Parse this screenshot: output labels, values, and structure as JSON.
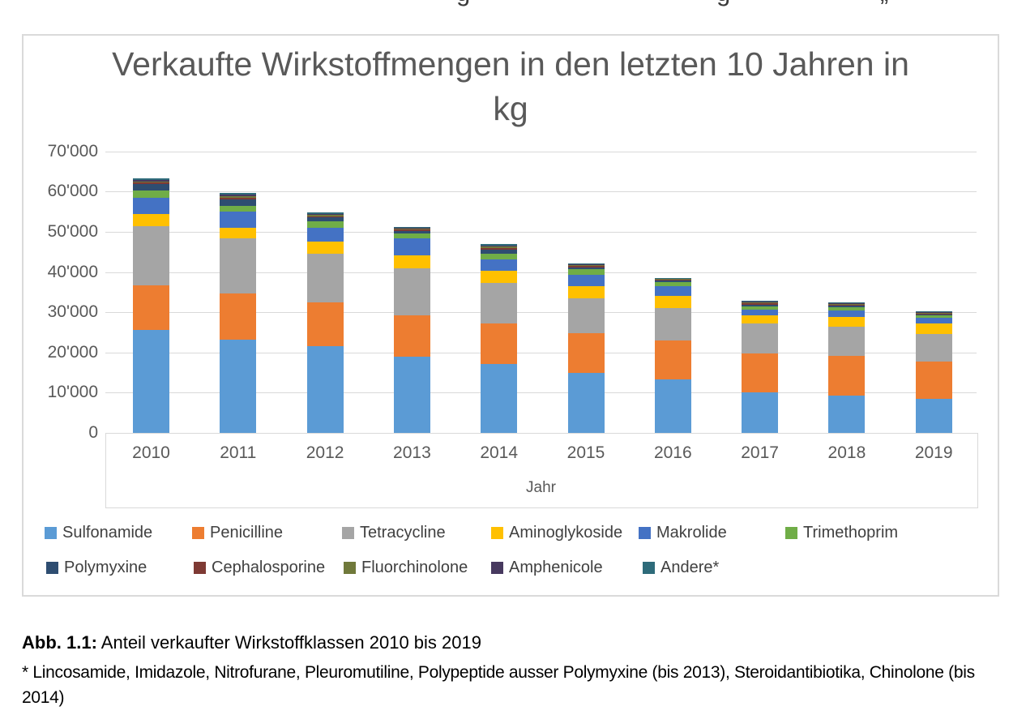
{
  "page": {
    "top_clipped_glyphs": [
      "g",
      "g",
      "„"
    ],
    "caption": {
      "label": "Abb. 1.1:",
      "text": " Anteil verkaufter Wirkstoffklassen 2010 bis 2019"
    },
    "footnote": "* Lincosamide, Imidazole, Nitrofurane, Pleuromutiline, Polypeptide ausser Polymyxine (bis 2013), Steroidantibiotika, Chinolone (bis 2014)"
  },
  "chart_data": {
    "type": "bar",
    "stacked": true,
    "title": "Verkaufte Wirkstoffmengen in den letzten 10 Jahren in kg",
    "xlabel": "Jahr",
    "ylabel": "",
    "ylim": [
      0,
      70000
    ],
    "ytick_step": 10000,
    "ytick_labels": [
      "0",
      "10'000",
      "20'000",
      "30'000",
      "40'000",
      "50'000",
      "60'000",
      "70'000"
    ],
    "grid": true,
    "legend_position": "bottom",
    "categories": [
      "2010",
      "2011",
      "2012",
      "2013",
      "2014",
      "2015",
      "2016",
      "2017",
      "2018",
      "2019"
    ],
    "series": [
      {
        "name": "Sulfonamide",
        "color": "#5B9BD5",
        "values": [
          25600,
          23100,
          21500,
          19000,
          17200,
          15000,
          13300,
          10000,
          9300,
          8400
        ]
      },
      {
        "name": "Penicilline",
        "color": "#ED7D31",
        "values": [
          11100,
          11600,
          11000,
          10300,
          10100,
          9900,
          9600,
          9800,
          9900,
          9400
        ]
      },
      {
        "name": "Tetracycline",
        "color": "#A5A5A5",
        "values": [
          14800,
          13600,
          12000,
          11700,
          10000,
          8500,
          8200,
          7500,
          7200,
          6900
        ]
      },
      {
        "name": "Aminoglykoside",
        "color": "#FFC000",
        "values": [
          3000,
          2800,
          3100,
          3100,
          3000,
          3100,
          3000,
          1900,
          2500,
          2500
        ]
      },
      {
        "name": "Makrolide",
        "color": "#4472C4",
        "values": [
          4000,
          3900,
          3400,
          4200,
          2800,
          2900,
          2400,
          1500,
          1600,
          1500
        ]
      },
      {
        "name": "Trimethoprim",
        "color": "#70AD47",
        "values": [
          1700,
          1500,
          1700,
          1300,
          1500,
          1300,
          1000,
          800,
          700,
          500
        ]
      },
      {
        "name": "Polymyxine",
        "color": "#2E4D71",
        "values": [
          1700,
          1500,
          900,
          700,
          1000,
          500,
          400,
          400,
          400,
          300
        ]
      },
      {
        "name": "Cephalosporine",
        "color": "#7E3A34",
        "values": [
          400,
          400,
          300,
          300,
          400,
          300,
          200,
          300,
          300,
          200
        ]
      },
      {
        "name": "Fluorchinolone",
        "color": "#70793B",
        "values": [
          300,
          400,
          300,
          200,
          300,
          200,
          200,
          200,
          200,
          200
        ]
      },
      {
        "name": "Amphenicole",
        "color": "#47395F",
        "values": [
          300,
          400,
          300,
          200,
          300,
          200,
          100,
          200,
          200,
          100
        ]
      },
      {
        "name": "Andere*",
        "color": "#2E6B7A",
        "values": [
          400,
          500,
          400,
          300,
          400,
          300,
          200,
          300,
          200,
          200
        ]
      }
    ]
  }
}
